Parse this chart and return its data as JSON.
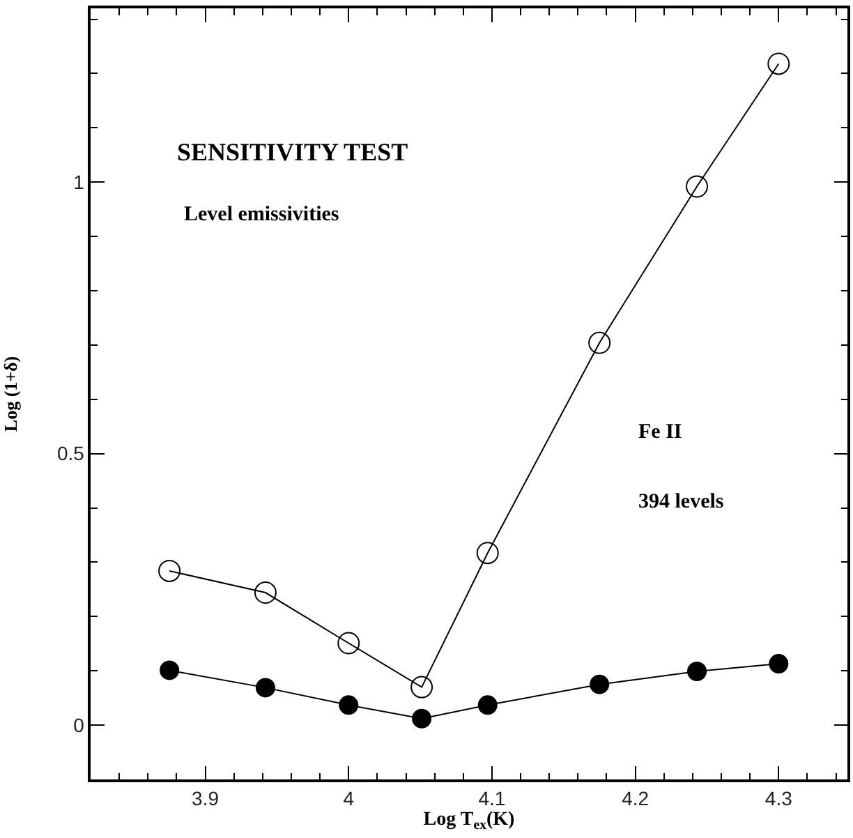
{
  "chart_data": {
    "type": "line",
    "xlabel": "Log T$_{ex}$(K)",
    "ylabel": "Log (1+δ)",
    "annotations": [
      "SENSITIVITY TEST",
      "Level emissivities",
      "Fe II",
      "394 levels"
    ],
    "series": [
      {
        "color": "#000000",
        "marker": "circle-open",
        "x": [
          3.875,
          3.942,
          4.0,
          4.051,
          4.097,
          4.175,
          4.243,
          4.3
        ],
        "values": [
          0.284,
          0.244,
          0.151,
          0.07,
          0.317,
          0.704,
          0.992,
          1.218
        ]
      },
      {
        "color": "#000000",
        "marker": "circle",
        "x": [
          3.875,
          3.942,
          4.0,
          4.051,
          4.097,
          4.175,
          4.243,
          4.3
        ],
        "values": [
          0.101,
          0.069,
          0.037,
          0.012,
          0.037,
          0.075,
          0.099,
          0.113
        ]
      }
    ],
    "xlim": [
      3.82,
      4.348
    ],
    "xticks": [
      3.9,
      4,
      4.1,
      4.2,
      4.3
    ],
    "ylim": [
      -0.1,
      1.32
    ],
    "yticks": [
      0,
      0.5,
      1
    ],
    "line_style": "solid"
  }
}
